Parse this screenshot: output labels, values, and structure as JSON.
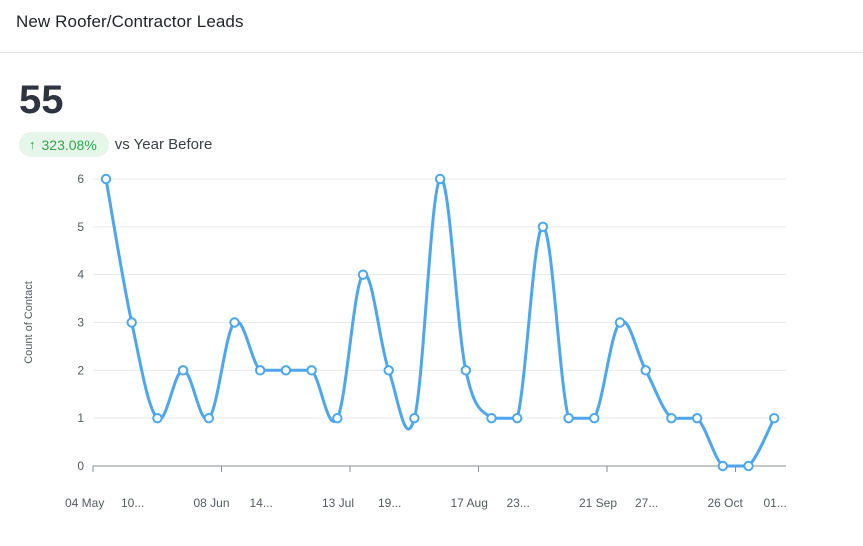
{
  "header": {
    "title": "New Roofer/Contractor Leads"
  },
  "kpi": {
    "value": "55",
    "delta_arrow": "↑",
    "delta": "323.08%",
    "compare_text": "vs Year Before"
  },
  "colors": {
    "line": "#4da6ee",
    "badge_bg": "#e6f6ea",
    "badge_text": "#2ea84a",
    "grid": "#e8e9ec"
  },
  "chart_data": {
    "type": "line",
    "ylabel": "Count of Contact",
    "xlabel": "",
    "ylim": [
      0,
      6
    ],
    "yticks": [
      0,
      1,
      2,
      3,
      4,
      5,
      6
    ],
    "grid": true,
    "smooth": true,
    "x_tick_labels": [
      "04 May",
      "10...",
      "08 Jun",
      "14...",
      "13 Jul",
      "19...",
      "17 Aug",
      "23...",
      "21 Sep",
      "27...",
      "26 Oct",
      "01..."
    ],
    "series": [
      {
        "values": [
          6,
          3,
          1,
          2,
          1,
          3,
          2,
          2,
          2,
          1,
          4,
          2,
          1,
          6,
          2,
          1,
          1,
          5,
          1,
          1,
          3,
          2,
          1,
          1,
          0,
          0,
          1
        ]
      }
    ]
  }
}
